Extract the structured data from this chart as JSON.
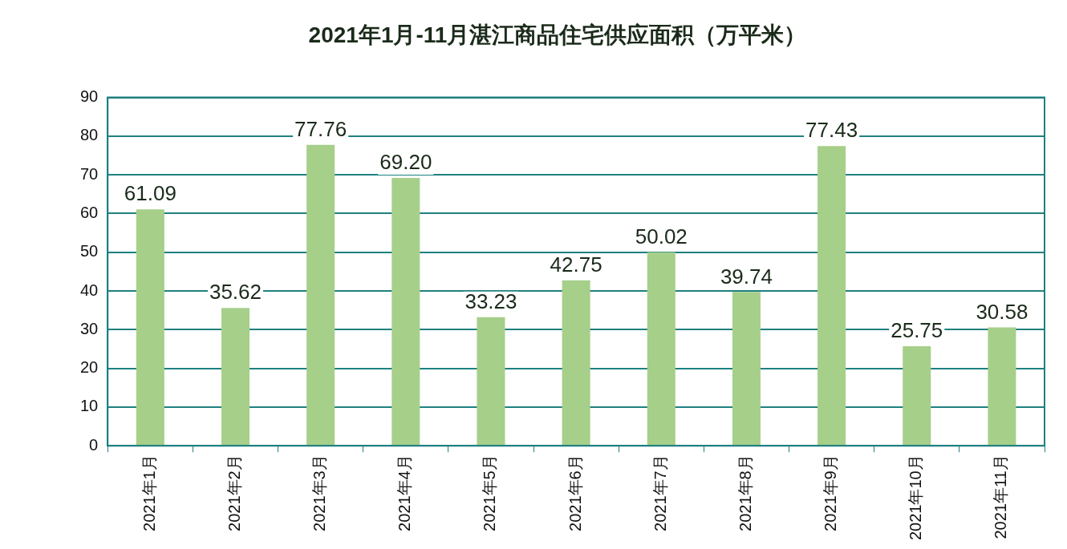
{
  "chart_data": {
    "type": "bar",
    "title": "2021年1月-11月湛江商品住宅供应面积（万平米）",
    "categories": [
      "2021年1月",
      "2021年2月",
      "2021年3月",
      "2021年4月",
      "2021年5月",
      "2021年6月",
      "2021年7月",
      "2021年8月",
      "2021年9月",
      "2021年10月",
      "2021年11月"
    ],
    "values": [
      61.09,
      35.62,
      77.76,
      69.2,
      33.23,
      42.75,
      50.02,
      39.74,
      77.43,
      25.75,
      30.58
    ],
    "value_labels": [
      "61.09",
      "35.62",
      "77.76",
      "69.20",
      "33.23",
      "42.75",
      "50.02",
      "39.74",
      "77.43",
      "25.75",
      "30.58"
    ],
    "color": "#a6cf8a",
    "ylim": [
      0,
      90
    ],
    "yticks": [
      0,
      10,
      20,
      30,
      40,
      50,
      60,
      70,
      80,
      90
    ],
    "grid": "y",
    "legend": false
  }
}
